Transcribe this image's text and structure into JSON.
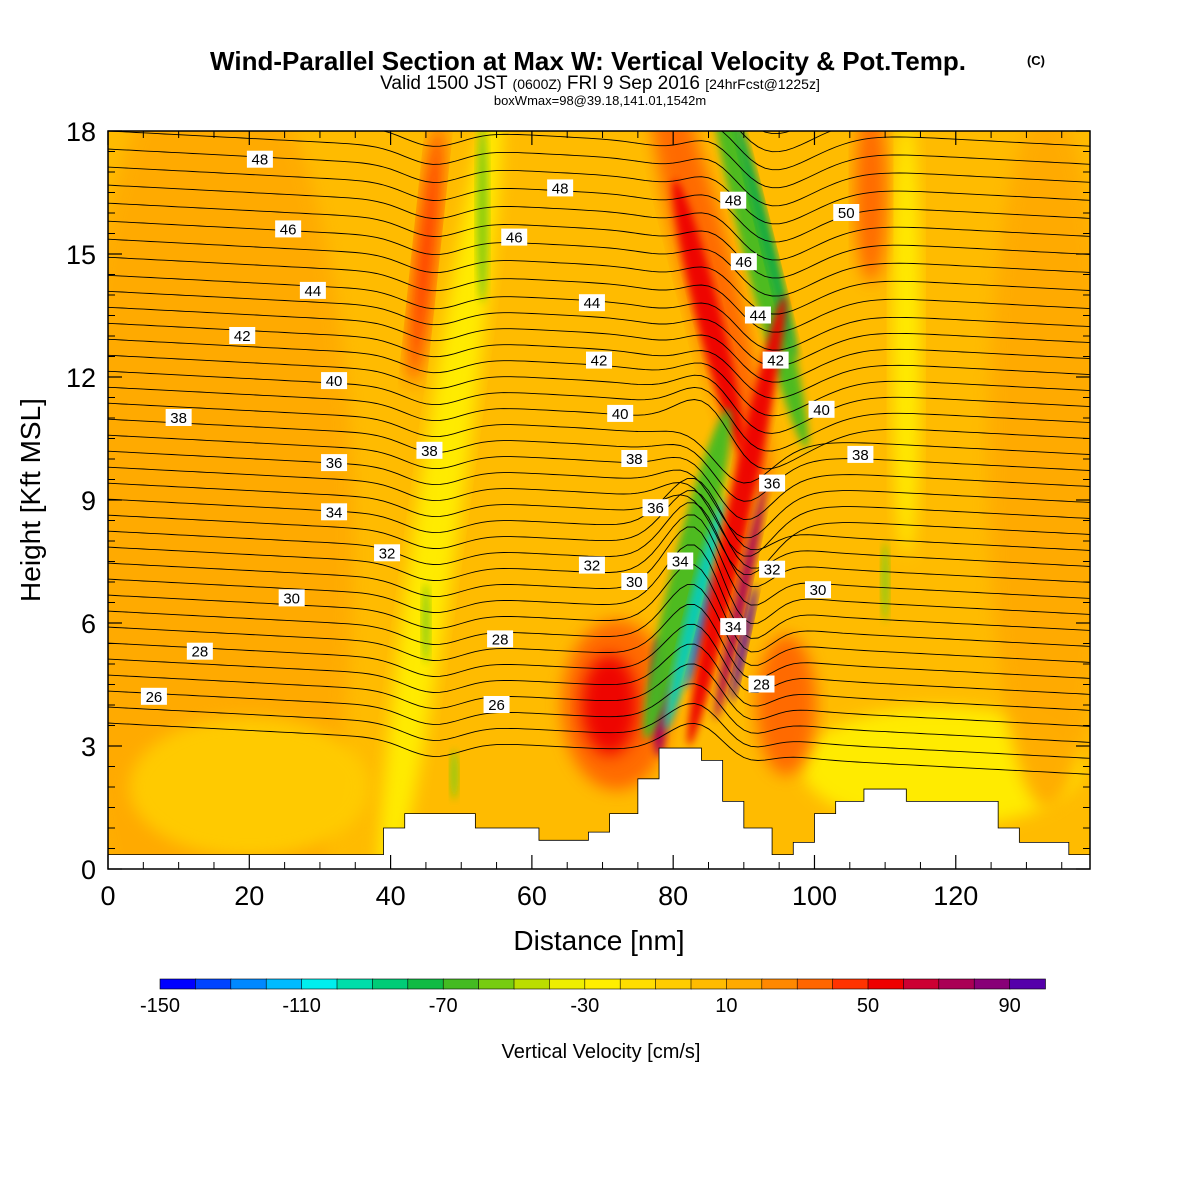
{
  "chart_data": {
    "type": "heatmap",
    "title": "Wind-Parallel Section at Max W: Vertical Velocity & Pot.Temp.",
    "title_mark": "(C)",
    "subtitle": {
      "prefix": "Valid 1500 JST",
      "utc": "(0600Z)",
      "date": "FRI 9 Sep 2016",
      "forecast": "[24hrFcst@1225z]"
    },
    "subtitle2": "boxWmax=98@39.18,141.01,1542m",
    "xlabel": "Distance [nm]",
    "ylabel": "Height [Kft MSL]",
    "xlim": [
      0,
      139
    ],
    "ylim": [
      0,
      18
    ],
    "x_ticks": [
      "0",
      "20",
      "40",
      "60",
      "80",
      "100",
      "120"
    ],
    "y_ticks": [
      "0",
      "3",
      "6",
      "9",
      "12",
      "15",
      "18"
    ],
    "colorbar": {
      "label": "Vertical Velocity [cm/s]",
      "range": [
        -150,
        100
      ],
      "tick_labels": [
        "-150",
        "-110",
        "-70",
        "-30",
        "10",
        "50",
        "90"
      ],
      "colors": [
        "#0000ff",
        "#0044ff",
        "#0088ff",
        "#00bbff",
        "#00eeee",
        "#00ddaa",
        "#00cc77",
        "#11bb44",
        "#44bb22",
        "#77cc11",
        "#bbdd00",
        "#eeee00",
        "#ffee00",
        "#ffdd00",
        "#ffcc00",
        "#ffbb00",
        "#ffaa00",
        "#ff8800",
        "#ff6600",
        "#ff3300",
        "#ee0000",
        "#cc0033",
        "#aa0055",
        "#880077",
        "#5500aa"
      ]
    },
    "contour_labels": [
      {
        "text": "48",
        "x": 21.5,
        "y": 17.3
      },
      {
        "text": "48",
        "x": 64.0,
        "y": 16.6
      },
      {
        "text": "48",
        "x": 88.5,
        "y": 16.3
      },
      {
        "text": "50",
        "x": 104.5,
        "y": 16.0
      },
      {
        "text": "46",
        "x": 25.5,
        "y": 15.6
      },
      {
        "text": "46",
        "x": 57.5,
        "y": 15.4
      },
      {
        "text": "46",
        "x": 90.0,
        "y": 14.8
      },
      {
        "text": "44",
        "x": 29.0,
        "y": 14.1
      },
      {
        "text": "44",
        "x": 68.5,
        "y": 13.8
      },
      {
        "text": "44",
        "x": 92.0,
        "y": 13.5
      },
      {
        "text": "42",
        "x": 19.0,
        "y": 13.0
      },
      {
        "text": "42",
        "x": 69.5,
        "y": 12.4
      },
      {
        "text": "42",
        "x": 94.5,
        "y": 12.4
      },
      {
        "text": "40",
        "x": 32.0,
        "y": 11.9
      },
      {
        "text": "40",
        "x": 72.5,
        "y": 11.1
      },
      {
        "text": "40",
        "x": 101.0,
        "y": 11.2
      },
      {
        "text": "38",
        "x": 10.0,
        "y": 11.0
      },
      {
        "text": "38",
        "x": 45.5,
        "y": 10.2
      },
      {
        "text": "38",
        "x": 74.5,
        "y": 10.0
      },
      {
        "text": "38",
        "x": 106.5,
        "y": 10.1
      },
      {
        "text": "36",
        "x": 32.0,
        "y": 9.9
      },
      {
        "text": "36",
        "x": 77.5,
        "y": 8.8
      },
      {
        "text": "36",
        "x": 94.0,
        "y": 9.4
      },
      {
        "text": "34",
        "x": 32.0,
        "y": 8.7
      },
      {
        "text": "34",
        "x": 81.0,
        "y": 7.5
      },
      {
        "text": "34",
        "x": 88.5,
        "y": 5.9
      },
      {
        "text": "32",
        "x": 39.5,
        "y": 7.7
      },
      {
        "text": "32",
        "x": 68.5,
        "y": 7.4
      },
      {
        "text": "32",
        "x": 94.0,
        "y": 7.3
      },
      {
        "text": "30",
        "x": 26.0,
        "y": 6.6
      },
      {
        "text": "30",
        "x": 74.5,
        "y": 7.0
      },
      {
        "text": "30",
        "x": 100.5,
        "y": 6.8
      },
      {
        "text": "28",
        "x": 13.0,
        "y": 5.3
      },
      {
        "text": "28",
        "x": 55.5,
        "y": 5.6
      },
      {
        "text": "28",
        "x": 92.5,
        "y": 4.5
      },
      {
        "text": "26",
        "x": 6.5,
        "y": 4.2
      },
      {
        "text": "26",
        "x": 55.0,
        "y": 4.0
      }
    ]
  }
}
